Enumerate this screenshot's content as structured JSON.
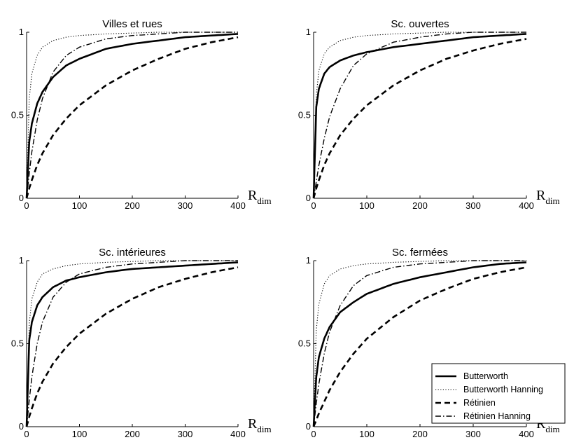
{
  "chart_data": [
    {
      "type": "line",
      "title": "Villes et rues",
      "xlabel": "R",
      "xlabel_subscript": "dim",
      "ylabel": "",
      "xlim": [
        0,
        400
      ],
      "ylim": [
        0,
        1
      ],
      "xticks": [
        "0",
        "100",
        "200",
        "300",
        "400"
      ],
      "yticks": [
        "0",
        "0.5",
        "1"
      ],
      "x": [
        0,
        5,
        10,
        20,
        30,
        50,
        75,
        100,
        150,
        200,
        250,
        300,
        350,
        400
      ],
      "series": [
        {
          "name": "Butterworth",
          "style": "solid",
          "values": [
            0.0,
            0.34,
            0.45,
            0.57,
            0.64,
            0.73,
            0.8,
            0.84,
            0.9,
            0.93,
            0.95,
            0.97,
            0.98,
            0.99
          ]
        },
        {
          "name": "Butterworth Hanning",
          "style": "dotted",
          "values": [
            0.0,
            0.6,
            0.75,
            0.86,
            0.91,
            0.95,
            0.97,
            0.98,
            0.99,
            0.995,
            1.0,
            1.0,
            1.0,
            1.0
          ]
        },
        {
          "name": "Rétinien",
          "style": "dashed",
          "values": [
            0.0,
            0.06,
            0.11,
            0.2,
            0.27,
            0.38,
            0.48,
            0.56,
            0.68,
            0.77,
            0.84,
            0.9,
            0.94,
            0.97
          ]
        },
        {
          "name": "Rétinien Hanning",
          "style": "dashdot",
          "values": [
            0.0,
            0.15,
            0.28,
            0.47,
            0.6,
            0.76,
            0.86,
            0.91,
            0.96,
            0.98,
            0.99,
            1.0,
            1.0,
            1.0
          ]
        }
      ]
    },
    {
      "type": "line",
      "title": "Sc. ouvertes",
      "xlabel": "R",
      "xlabel_subscript": "dim",
      "ylabel": "",
      "xlim": [
        0,
        400
      ],
      "ylim": [
        0,
        1
      ],
      "xticks": [
        "0",
        "100",
        "200",
        "300",
        "400"
      ],
      "yticks": [
        "0",
        "0.5",
        "1"
      ],
      "x": [
        0,
        5,
        10,
        20,
        30,
        50,
        75,
        100,
        150,
        200,
        250,
        300,
        350,
        400
      ],
      "series": [
        {
          "name": "Butterworth",
          "style": "solid",
          "values": [
            0.0,
            0.55,
            0.66,
            0.75,
            0.79,
            0.83,
            0.86,
            0.88,
            0.91,
            0.93,
            0.95,
            0.97,
            0.98,
            0.99
          ]
        },
        {
          "name": "Butterworth Hanning",
          "style": "dotted",
          "values": [
            0.0,
            0.62,
            0.77,
            0.87,
            0.91,
            0.95,
            0.97,
            0.98,
            0.99,
            0.995,
            1.0,
            1.0,
            1.0,
            1.0
          ]
        },
        {
          "name": "Rétinien",
          "style": "dashed",
          "values": [
            0.0,
            0.06,
            0.11,
            0.2,
            0.27,
            0.38,
            0.48,
            0.56,
            0.68,
            0.77,
            0.84,
            0.89,
            0.93,
            0.96
          ]
        },
        {
          "name": "Rétinien Hanning",
          "style": "dashdot",
          "values": [
            0.0,
            0.1,
            0.2,
            0.36,
            0.49,
            0.66,
            0.8,
            0.87,
            0.94,
            0.97,
            0.99,
            1.0,
            1.0,
            1.0
          ]
        }
      ]
    },
    {
      "type": "line",
      "title": "Sc. intérieures",
      "xlabel": "R",
      "xlabel_subscript": "dim",
      "ylabel": "",
      "xlim": [
        0,
        400
      ],
      "ylim": [
        0,
        1
      ],
      "xticks": [
        "0",
        "100",
        "200",
        "300",
        "400"
      ],
      "yticks": [
        "0",
        "0.5",
        "1"
      ],
      "x": [
        0,
        5,
        10,
        20,
        30,
        50,
        75,
        100,
        150,
        200,
        250,
        300,
        350,
        400
      ],
      "series": [
        {
          "name": "Butterworth",
          "style": "solid",
          "values": [
            0.0,
            0.52,
            0.63,
            0.73,
            0.78,
            0.84,
            0.88,
            0.9,
            0.93,
            0.95,
            0.96,
            0.97,
            0.98,
            0.99
          ]
        },
        {
          "name": "Butterworth Hanning",
          "style": "dotted",
          "values": [
            0.0,
            0.62,
            0.77,
            0.87,
            0.92,
            0.95,
            0.97,
            0.98,
            0.99,
            0.995,
            1.0,
            1.0,
            1.0,
            1.0
          ]
        },
        {
          "name": "Rétinien",
          "style": "dashed",
          "values": [
            0.0,
            0.06,
            0.11,
            0.2,
            0.27,
            0.38,
            0.48,
            0.56,
            0.68,
            0.77,
            0.84,
            0.89,
            0.93,
            0.96
          ]
        },
        {
          "name": "Rétinien Hanning",
          "style": "dashdot",
          "values": [
            0.0,
            0.16,
            0.3,
            0.5,
            0.63,
            0.78,
            0.87,
            0.92,
            0.96,
            0.98,
            0.99,
            1.0,
            1.0,
            1.0
          ]
        }
      ]
    },
    {
      "type": "line",
      "title": "Sc. fermées",
      "xlabel": "R",
      "xlabel_subscript": "dim",
      "ylabel": "",
      "xlim": [
        0,
        400
      ],
      "ylim": [
        0,
        1
      ],
      "xticks": [
        "0",
        "100",
        "200",
        "300",
        "400"
      ],
      "yticks": [
        "0",
        "0.5",
        "1"
      ],
      "x": [
        0,
        5,
        10,
        20,
        30,
        50,
        75,
        100,
        150,
        200,
        250,
        300,
        350,
        400
      ],
      "series": [
        {
          "name": "Butterworth",
          "style": "solid",
          "values": [
            0.0,
            0.3,
            0.42,
            0.53,
            0.6,
            0.69,
            0.75,
            0.8,
            0.86,
            0.9,
            0.93,
            0.96,
            0.98,
            0.99
          ]
        },
        {
          "name": "Butterworth Hanning",
          "style": "dotted",
          "values": [
            0.0,
            0.58,
            0.74,
            0.86,
            0.91,
            0.95,
            0.97,
            0.98,
            0.99,
            0.995,
            1.0,
            1.0,
            1.0,
            1.0
          ]
        },
        {
          "name": "Rétinien",
          "style": "dashed",
          "values": [
            0.0,
            0.04,
            0.08,
            0.15,
            0.22,
            0.33,
            0.44,
            0.53,
            0.66,
            0.76,
            0.83,
            0.89,
            0.93,
            0.96
          ]
        },
        {
          "name": "Rétinien Hanning",
          "style": "dashdot",
          "values": [
            0.0,
            0.14,
            0.26,
            0.44,
            0.57,
            0.73,
            0.85,
            0.91,
            0.96,
            0.98,
            0.99,
            1.0,
            1.0,
            1.0
          ]
        }
      ]
    }
  ],
  "legend": {
    "placement": "bottom-right of fourth panel",
    "entries": [
      {
        "label": "Butterworth",
        "style": "solid"
      },
      {
        "label": "Butterworth Hanning",
        "style": "dotted"
      },
      {
        "label": "Rétinien",
        "style": "dashed"
      },
      {
        "label": "Rétinien Hanning",
        "style": "dashdot"
      }
    ]
  },
  "colors": {
    "line": "#000000",
    "background": "#ffffff"
  }
}
